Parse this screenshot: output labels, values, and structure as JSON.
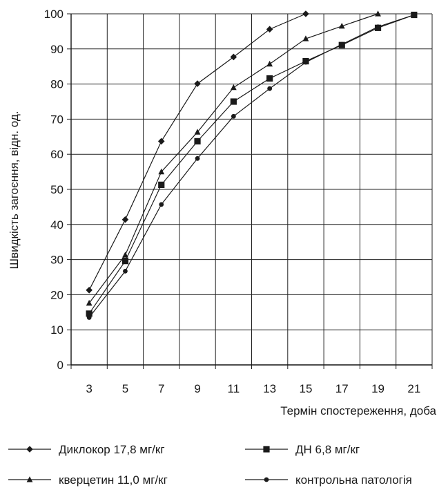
{
  "chart_data": {
    "type": "line",
    "title": "",
    "xlabel": "Термін спостереження, доба",
    "ylabel": "Швидкість загоєння, відн. од.",
    "x": [
      3,
      5,
      7,
      9,
      11,
      13,
      15,
      17,
      19,
      21
    ],
    "xlim": [
      2,
      22
    ],
    "ylim": [
      0,
      100
    ],
    "yticks": [
      0,
      10,
      20,
      30,
      40,
      50,
      60,
      70,
      80,
      90,
      100
    ],
    "xticks": [
      3,
      5,
      7,
      9,
      11,
      13,
      15,
      17,
      19,
      21
    ],
    "grid": true,
    "legend_position": "bottom",
    "series": [
      {
        "name": "Диклокор 17,8 мг/кг",
        "marker": "diamond",
        "x": [
          3,
          5,
          7,
          9,
          11,
          13,
          15
        ],
        "values": [
          21.3,
          41.4,
          63.7,
          80.1,
          87.7,
          95.6,
          100
        ]
      },
      {
        "name": "ДН 6,8 мг/кг",
        "marker": "square",
        "x": [
          3,
          5,
          7,
          9,
          11,
          13,
          15,
          17,
          19,
          21
        ],
        "values": [
          14.6,
          29.6,
          51.3,
          63.7,
          75.0,
          81.6,
          86.5,
          91.1,
          96.0,
          99.7
        ]
      },
      {
        "name": "кверцетин 11,0 мг/кг",
        "marker": "triangle",
        "x": [
          3,
          5,
          7,
          9,
          11,
          13,
          15,
          17,
          19
        ],
        "values": [
          17.6,
          31.3,
          55.0,
          66.3,
          79.0,
          85.7,
          92.9,
          96.5,
          100
        ]
      },
      {
        "name": "контрольна патологія",
        "marker": "circle",
        "x": [
          3,
          5,
          7,
          9,
          11,
          13,
          15,
          17,
          19,
          21
        ],
        "values": [
          13.5,
          26.7,
          45.7,
          58.8,
          70.8,
          78.7,
          86.2,
          91.3,
          96.3,
          99.7
        ]
      }
    ]
  }
}
